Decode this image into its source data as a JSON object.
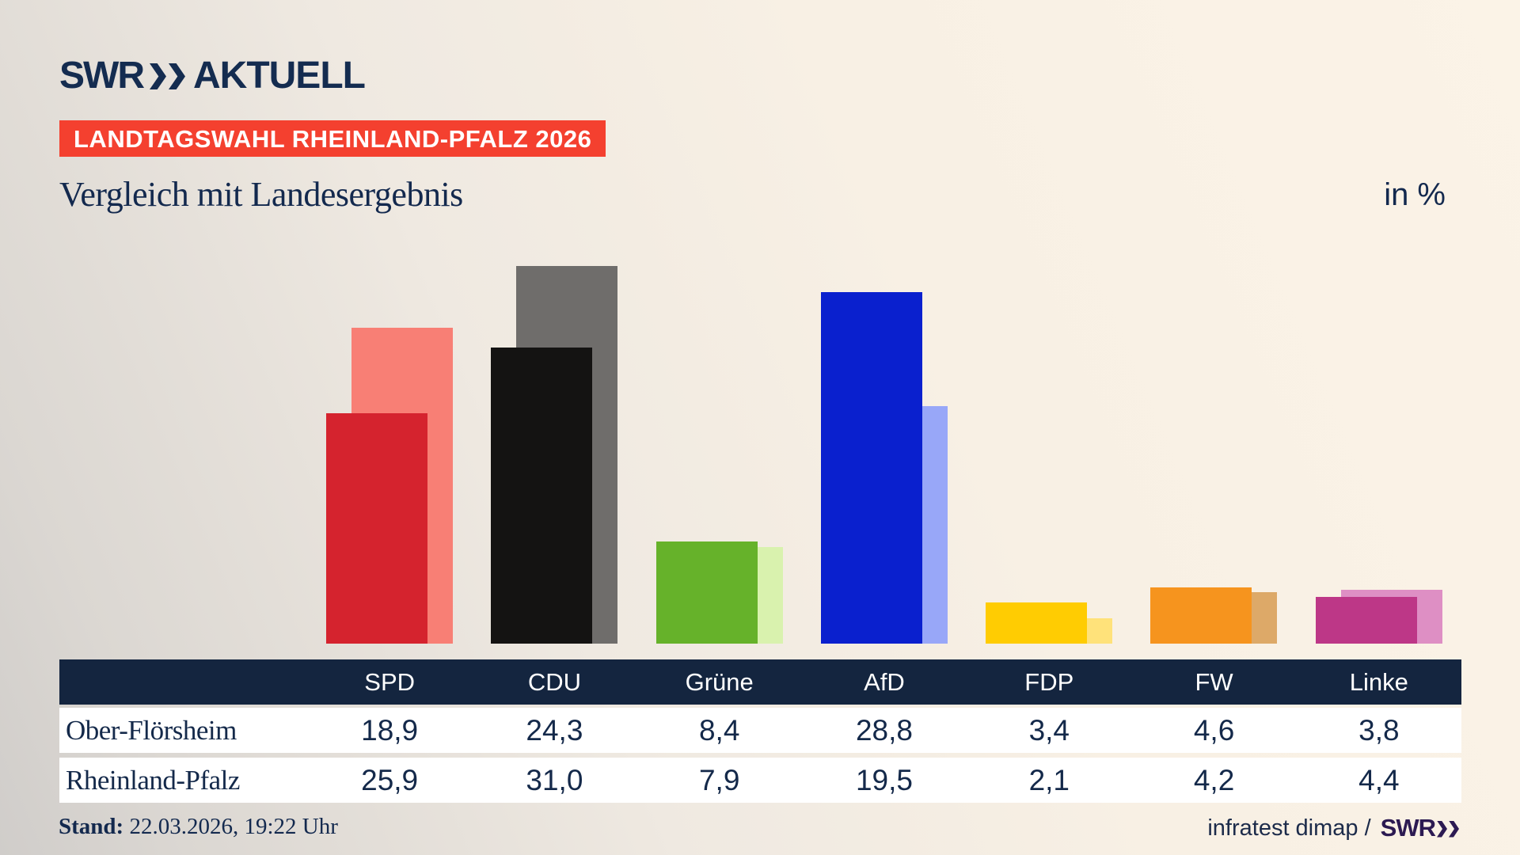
{
  "brand": {
    "logo_text": "SWR",
    "logo_suffix": "AKTUELL",
    "logo_color": "#142c50"
  },
  "badge": {
    "text": "LANDTAGSWAHL RHEINLAND-PFALZ 2026",
    "bg": "#f4402f",
    "fg": "#ffffff"
  },
  "title": "Vergleich mit Landesergebnis",
  "unit_label": "in %",
  "chart_data": {
    "type": "bar",
    "categories": [
      "SPD",
      "CDU",
      "Grüne",
      "AfD",
      "FDP",
      "FW",
      "Linke"
    ],
    "series": [
      {
        "name": "Ober-Flörsheim",
        "values": [
          18.9,
          24.3,
          8.4,
          28.8,
          3.4,
          4.6,
          3.8
        ],
        "colors": [
          "#d5232e",
          "#141312",
          "#66b22a",
          "#0a20ce",
          "#ffcc02",
          "#f6941e",
          "#bd3787"
        ]
      },
      {
        "name": "Rheinland-Pfalz",
        "values": [
          25.9,
          31.0,
          7.9,
          19.5,
          2.1,
          4.2,
          4.4
        ],
        "colors": [
          "#f87f75",
          "#6f6d6b",
          "#d9f2ae",
          "#98a7f8",
          "#ffe27a",
          "#dda968",
          "#de8fc4"
        ]
      }
    ],
    "ylim": [
      0,
      31
    ],
    "grid": false,
    "legend_position": "table-row-labels",
    "title": "Vergleich mit Landesergebnis",
    "ylabel": "in %"
  },
  "table": {
    "columns": [
      "SPD",
      "CDU",
      "Grüne",
      "AfD",
      "FDP",
      "FW",
      "Linke"
    ],
    "rows": [
      {
        "label": "Ober-Flörsheim",
        "values": [
          "18,9",
          "24,3",
          "8,4",
          "28,8",
          "3,4",
          "4,6",
          "3,8"
        ]
      },
      {
        "label": "Rheinland-Pfalz",
        "values": [
          "25,9",
          "31,0",
          "7,9",
          "19,5",
          "2,1",
          "4,2",
          "4,4"
        ]
      }
    ],
    "header_bg": "#14253f",
    "header_fg": "#ffffff",
    "row_bg": "#ffffff",
    "value_color": "#14294a"
  },
  "footer": {
    "stand_label": "Stand:",
    "stand_value": " 22.03.2026, 19:22 Uhr",
    "source_text": "infratest dimap /",
    "source_logo": "SWR"
  }
}
